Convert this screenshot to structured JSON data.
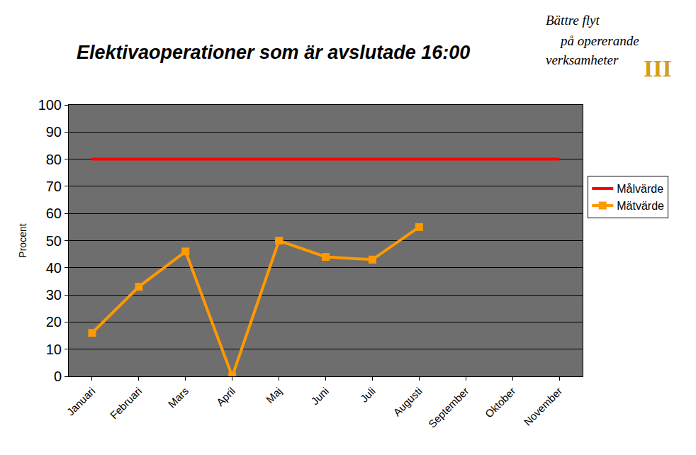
{
  "chart_data": {
    "type": "line",
    "title": "Elektivaoperationer som är avslutade 16:00",
    "y_label": "Procent",
    "categories": [
      "Januari",
      "Februari",
      "Mars",
      "April",
      "Maj",
      "Juni",
      "Juli",
      "Augusti",
      "September",
      "Oktober",
      "November"
    ],
    "series": [
      {
        "name": "Målvärde",
        "color": "#ff0000",
        "marker": "none",
        "values": [
          80,
          80,
          80,
          80,
          80,
          80,
          80,
          80,
          80,
          80,
          80
        ]
      },
      {
        "name": "Mätvärde",
        "color": "#ff9900",
        "marker": "square",
        "values": [
          16,
          33,
          46,
          0,
          50,
          44,
          43,
          55,
          null,
          null,
          null
        ]
      }
    ],
    "ylim": [
      0,
      100
    ],
    "yticks": [
      0,
      10,
      20,
      30,
      40,
      50,
      60,
      70,
      80,
      90,
      100
    ],
    "grid": true,
    "legend": "right",
    "annotations": [
      "Bättre flyt",
      "på opererande",
      "verksamheter",
      "III"
    ]
  }
}
